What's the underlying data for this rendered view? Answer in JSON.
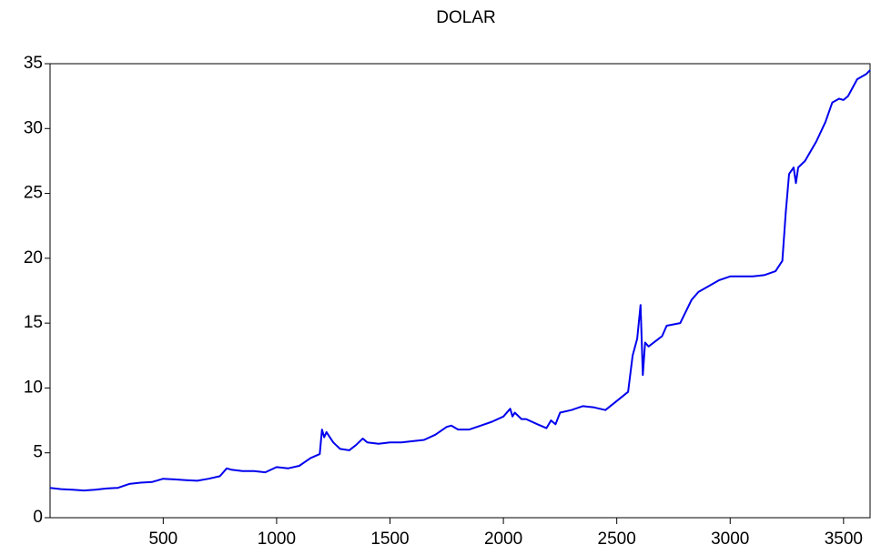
{
  "chart_data": {
    "type": "line",
    "title": "DOLAR",
    "x": [
      1,
      50,
      100,
      150,
      200,
      250,
      300,
      350,
      400,
      450,
      500,
      550,
      600,
      650,
      700,
      750,
      780,
      800,
      850,
      900,
      950,
      1000,
      1050,
      1100,
      1150,
      1190,
      1200,
      1210,
      1220,
      1250,
      1280,
      1320,
      1350,
      1380,
      1400,
      1450,
      1500,
      1550,
      1600,
      1650,
      1700,
      1750,
      1770,
      1800,
      1850,
      1900,
      1950,
      2000,
      2030,
      2040,
      2050,
      2080,
      2100,
      2150,
      2190,
      2210,
      2230,
      2250,
      2300,
      2350,
      2400,
      2450,
      2500,
      2550,
      2570,
      2590,
      2605,
      2615,
      2625,
      2640,
      2700,
      2720,
      2780,
      2830,
      2860,
      2900,
      2950,
      3000,
      3100,
      3150,
      3200,
      3230,
      3245,
      3260,
      3280,
      3290,
      3300,
      3330,
      3380,
      3420,
      3450,
      3480,
      3500,
      3520,
      3560,
      3600,
      3617
    ],
    "series": [
      {
        "name": "DOLAR",
        "color": "#0000ee",
        "values": [
          2.3,
          2.2,
          2.15,
          2.1,
          2.15,
          2.25,
          2.3,
          2.6,
          2.7,
          2.75,
          3.0,
          2.95,
          2.9,
          2.85,
          3.0,
          3.2,
          3.8,
          3.7,
          3.6,
          3.6,
          3.5,
          3.9,
          3.8,
          4.0,
          4.6,
          4.9,
          6.8,
          6.2,
          6.6,
          5.8,
          5.3,
          5.2,
          5.6,
          6.1,
          5.8,
          5.7,
          5.8,
          5.8,
          5.9,
          6.0,
          6.4,
          7.0,
          7.1,
          6.8,
          6.8,
          7.1,
          7.4,
          7.8,
          8.4,
          7.8,
          8.1,
          7.6,
          7.6,
          7.2,
          6.9,
          7.5,
          7.2,
          8.1,
          8.3,
          8.6,
          8.5,
          8.3,
          9.0,
          9.7,
          12.5,
          13.8,
          16.4,
          11.0,
          13.5,
          13.2,
          14.0,
          14.8,
          15.0,
          16.8,
          17.4,
          17.8,
          18.3,
          18.6,
          18.6,
          18.7,
          19.0,
          19.8,
          23.5,
          26.5,
          27.0,
          25.8,
          27.0,
          27.5,
          29.0,
          30.5,
          32.0,
          32.3,
          32.2,
          32.5,
          33.8,
          34.2,
          34.5
        ]
      }
    ],
    "xlim": [
      1,
      3617
    ],
    "xticks": [
      500,
      1000,
      1500,
      2000,
      2500,
      3000,
      3500
    ],
    "ylim": [
      0,
      35
    ],
    "yticks": [
      0,
      5,
      10,
      15,
      20,
      25,
      30,
      35
    ]
  }
}
